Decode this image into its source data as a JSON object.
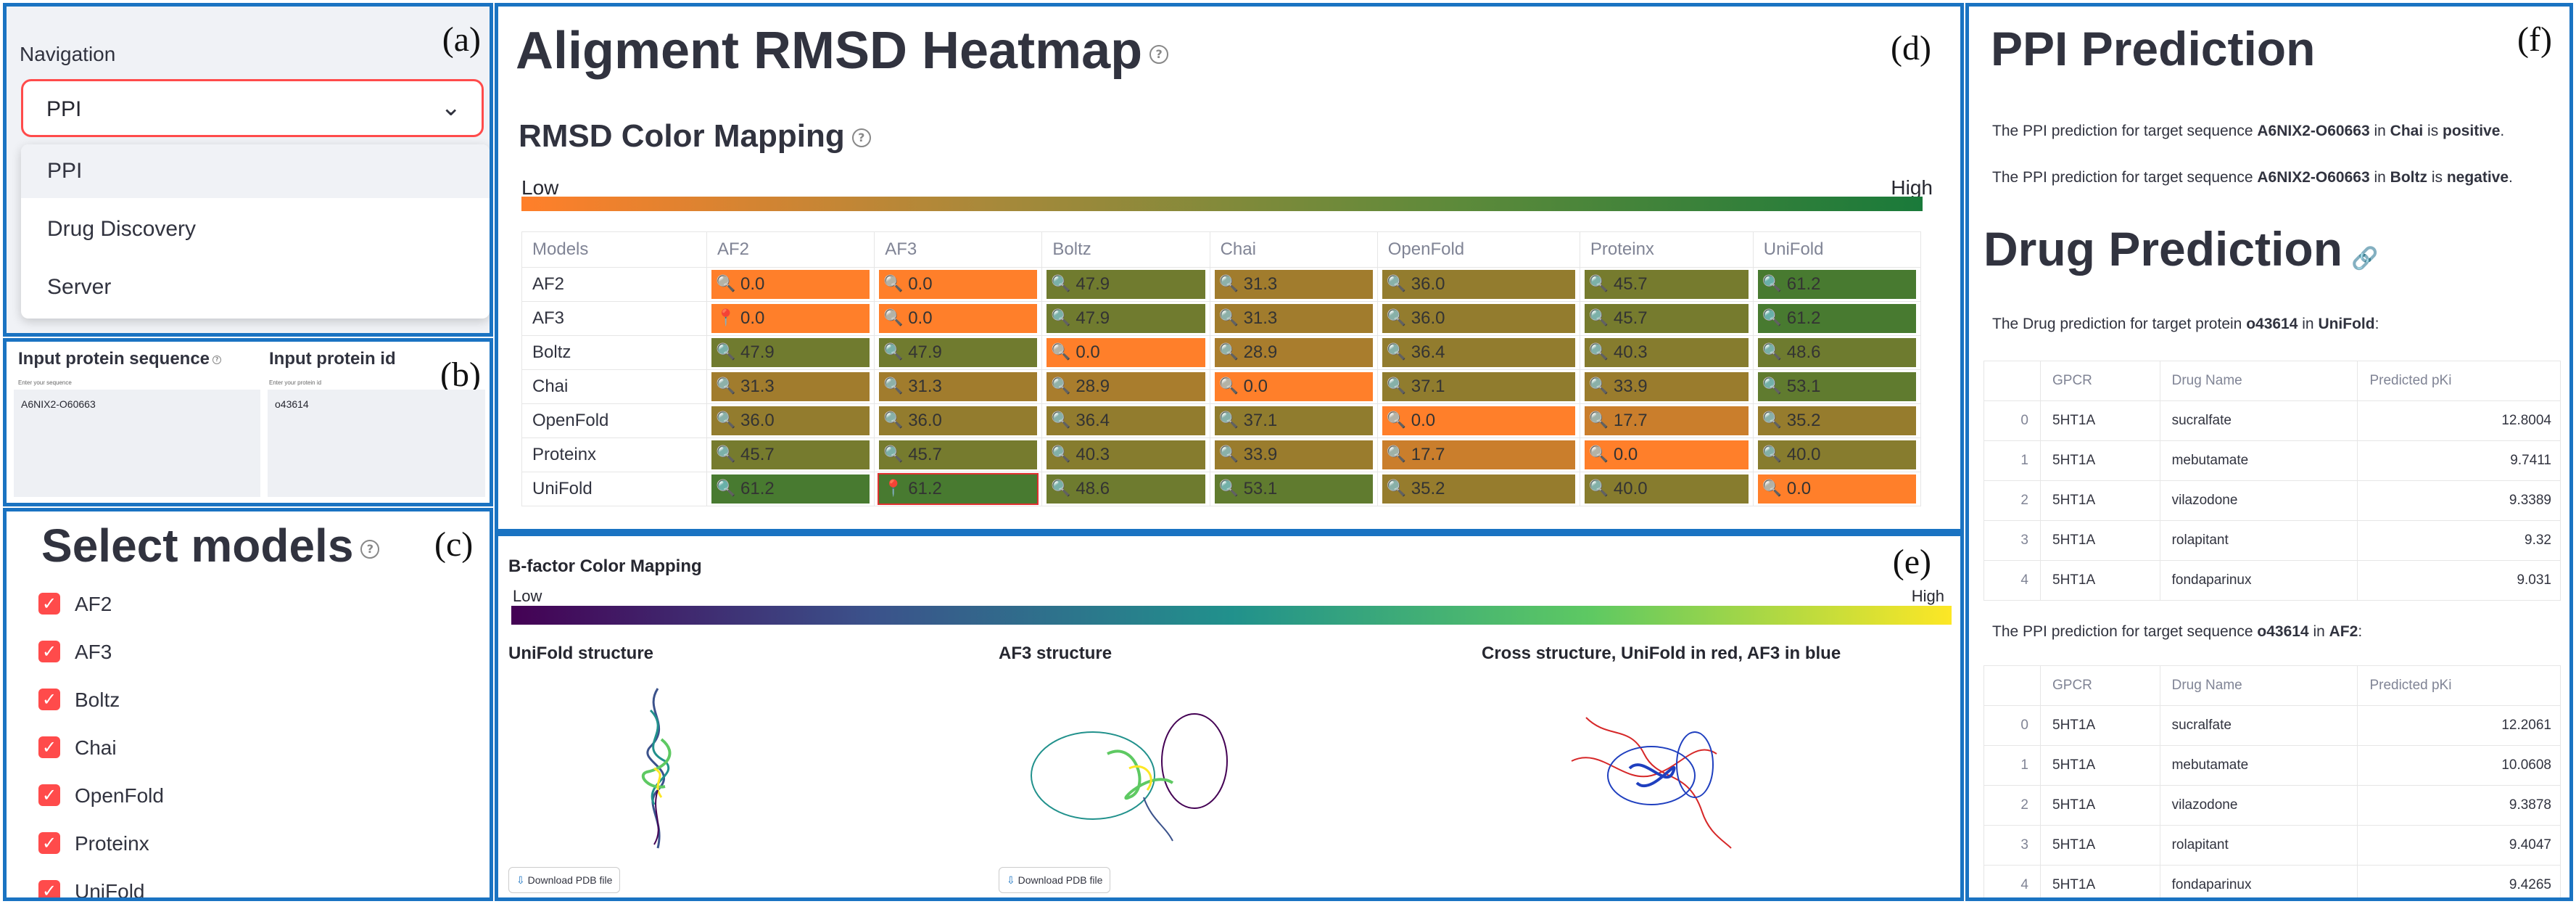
{
  "panel_labels": {
    "a": "(a)",
    "b": "(b)",
    "c": "(c)",
    "d": "(d)",
    "e": "(e)",
    "f": "(f)"
  },
  "navigation": {
    "label": "Navigation",
    "selected": "PPI",
    "options": [
      "PPI",
      "Drug Discovery",
      "Server"
    ]
  },
  "inputs": {
    "sequence_title": "Input protein sequence",
    "sequence_hint": "Enter your sequence",
    "sequence_value": "A6NIX2-O60663",
    "id_title": "Input protein id",
    "id_hint": "Enter your protein id",
    "id_value": "o43614"
  },
  "select_models": {
    "title": "Select models",
    "models": [
      "AF2",
      "AF3",
      "Boltz",
      "Chai",
      "OpenFold",
      "Proteinx",
      "UniFold"
    ]
  },
  "rmsd": {
    "title": "Aligment RMSD Heatmap",
    "subtitle": "RMSD Color Mapping",
    "low": "Low",
    "high": "High",
    "headers": [
      "Models",
      "AF2",
      "AF3",
      "Boltz",
      "Chai",
      "OpenFold",
      "Proteinx",
      "UniFold"
    ],
    "rows": [
      {
        "model": "AF2",
        "values": [
          "0.0",
          "0.0",
          "47.9",
          "31.3",
          "36.0",
          "45.7",
          "61.2"
        ]
      },
      {
        "model": "AF3",
        "values": [
          "0.0",
          "0.0",
          "47.9",
          "31.3",
          "36.0",
          "45.7",
          "61.2"
        ]
      },
      {
        "model": "Boltz",
        "values": [
          "47.9",
          "47.9",
          "0.0",
          "28.9",
          "36.4",
          "40.3",
          "48.6"
        ]
      },
      {
        "model": "Chai",
        "values": [
          "31.3",
          "31.3",
          "28.9",
          "0.0",
          "37.1",
          "33.9",
          "53.1"
        ]
      },
      {
        "model": "OpenFold",
        "values": [
          "36.0",
          "36.0",
          "36.4",
          "37.1",
          "0.0",
          "17.7",
          "35.2"
        ]
      },
      {
        "model": "Proteinx",
        "values": [
          "45.7",
          "45.7",
          "40.3",
          "33.9",
          "17.7",
          "0.0",
          "40.0"
        ]
      },
      {
        "model": "UniFold",
        "values": [
          "61.2",
          "61.2",
          "48.6",
          "53.1",
          "35.2",
          "40.0",
          "0.0"
        ]
      }
    ],
    "colors": {
      "low": "#ff7f2a",
      "high": "#1a7a3a"
    }
  },
  "bfactor": {
    "title": "B-factor Color Mapping",
    "low": "Low",
    "high": "High",
    "structures": [
      {
        "title": "UniFold structure",
        "button": "Download PDB file"
      },
      {
        "title": "AF3 structure",
        "button": "Download PDB file"
      },
      {
        "title": "Cross structure, UniFold in red, AF3 in blue"
      }
    ]
  },
  "ppi": {
    "title": "PPI Prediction",
    "lines": [
      {
        "pre": "The PPI prediction for target sequence ",
        "seq": "A6NIX2-O60663",
        "mid": " in ",
        "model": "Chai",
        "is": " is ",
        "result": "positive",
        "end": "."
      },
      {
        "pre": "The PPI prediction for target sequence ",
        "seq": "A6NIX2-O60663",
        "mid": " in ",
        "model": "Boltz",
        "is": " is ",
        "result": "negative",
        "end": "."
      }
    ]
  },
  "drug": {
    "title": "Drug Prediction",
    "caption1": {
      "pre": "The Drug prediction for target protein ",
      "id": "o43614",
      "mid": " in ",
      "model": "UniFold",
      "end": ":"
    },
    "headers": [
      "",
      "GPCR",
      "Drug Name",
      "Predicted pKi"
    ],
    "table1": [
      [
        "0",
        "5HT1A",
        "sucralfate",
        "12.8004"
      ],
      [
        "1",
        "5HT1A",
        "mebutamate",
        "9.7411"
      ],
      [
        "2",
        "5HT1A",
        "vilazodone",
        "9.3389"
      ],
      [
        "3",
        "5HT1A",
        "rolapitant",
        "9.32"
      ],
      [
        "4",
        "5HT1A",
        "fondaparinux",
        "9.031"
      ]
    ],
    "caption2": {
      "pre": "The PPI prediction for target sequence ",
      "id": "o43614",
      "mid": " in ",
      "model": "AF2",
      "end": ":"
    },
    "table2": [
      [
        "0",
        "5HT1A",
        "sucralfate",
        "12.2061"
      ],
      [
        "1",
        "5HT1A",
        "mebutamate",
        "10.0608"
      ],
      [
        "2",
        "5HT1A",
        "vilazodone",
        "9.3878"
      ],
      [
        "3",
        "5HT1A",
        "rolapitant",
        "9.4047"
      ],
      [
        "4",
        "5HT1A",
        "fondaparinux",
        "9.4265"
      ]
    ]
  }
}
